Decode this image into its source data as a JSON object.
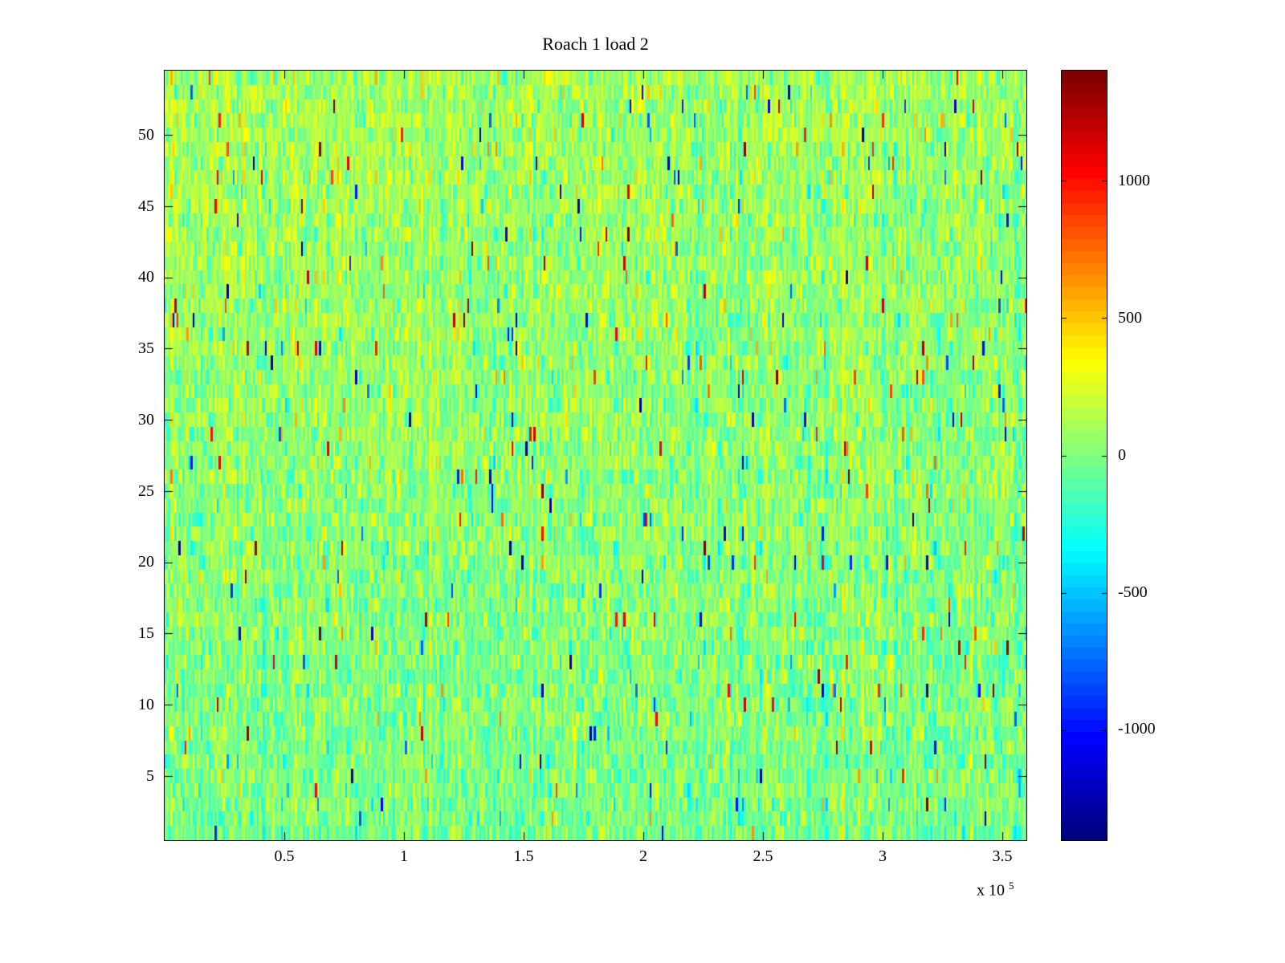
{
  "figure": {
    "background": "#ffffff"
  },
  "chart_data": {
    "type": "heatmap",
    "title": "Roach 1 load 2",
    "xlabel": "",
    "ylabel": "",
    "x_range": [
      0,
      360000
    ],
    "x_ticks": [
      50000,
      100000,
      150000,
      200000,
      250000,
      300000,
      350000
    ],
    "x_tick_labels": [
      "0.5",
      "1",
      "1.5",
      "2",
      "2.5",
      "3",
      "3.5"
    ],
    "x_scale": {
      "prefix": "x 10",
      "exponent": "5"
    },
    "y_range": [
      0.5,
      54.5
    ],
    "y_ticks": [
      5,
      10,
      15,
      20,
      25,
      30,
      35,
      40,
      45,
      50
    ],
    "y_tick_labels": [
      "5",
      "10",
      "15",
      "20",
      "25",
      "30",
      "35",
      "40",
      "45",
      "50"
    ],
    "colormap": "jet",
    "color_range": [
      -1400,
      1400
    ],
    "colorbar_ticks": [
      1000,
      500,
      0,
      -500,
      -1000
    ],
    "colorbar_tick_labels": [
      "1000",
      "500",
      "0",
      "-500",
      "-1000"
    ],
    "colorbar_steps": 64,
    "grid": {
      "rows": 54,
      "cols": 430
    },
    "noise_model": {
      "seed": 20,
      "mean_base": 10,
      "mean_gradient": 115,
      "x_fade": 0.55,
      "top_shift": -35,
      "column_std": 55,
      "std": 150,
      "speckle_prob": 0.015,
      "speckle_min": 500,
      "speckle_max": 1400
    },
    "description": "Dense noisy spectrogram-like heatmap, values mostly near 0 (green), slightly positive (yellow-green) toward lower-left, slightly negative (cyan) patches throughout, sparse extreme speckles up to +/-1400 (red/blue), jet colormap."
  }
}
